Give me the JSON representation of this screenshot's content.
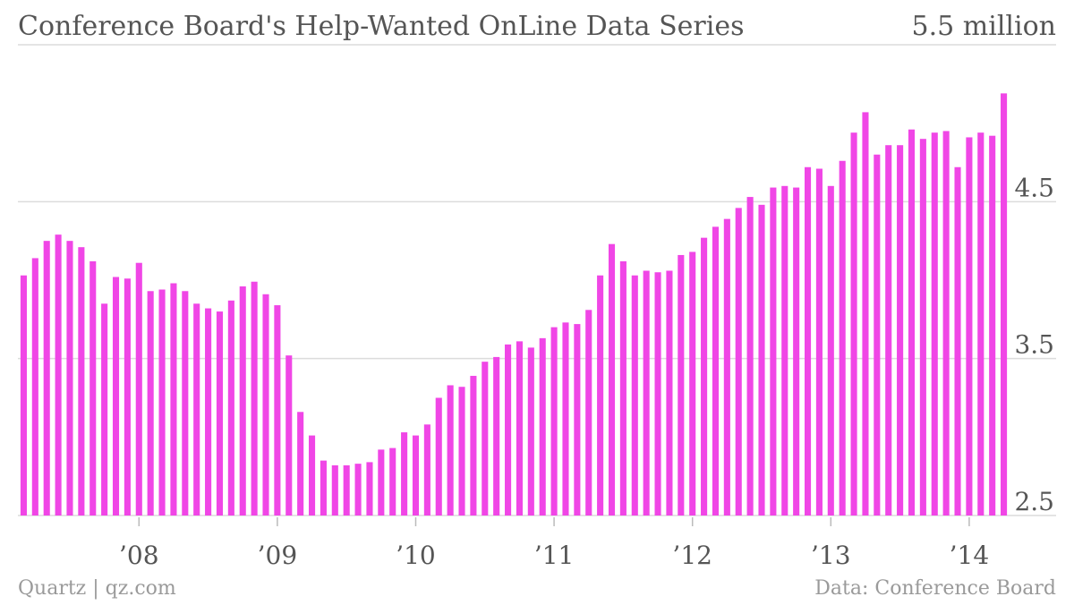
{
  "chart_data": {
    "type": "bar",
    "title": "Conference Board's Help-Wanted OnLine Data Series",
    "y_unit_label": "5.5 million",
    "ylim": [
      2.5,
      5.5
    ],
    "yticks": [
      {
        "value": 2.5,
        "label": "2.5"
      },
      {
        "value": 3.5,
        "label": "3.5"
      },
      {
        "value": 4.5,
        "label": "4.5"
      },
      {
        "value": 5.5,
        "label": "5.5 million"
      }
    ],
    "xticks": [
      {
        "index": 10,
        "label": "’08"
      },
      {
        "index": 22,
        "label": "’09"
      },
      {
        "index": 34,
        "label": "’10"
      },
      {
        "index": 46,
        "label": "’11"
      },
      {
        "index": 58,
        "label": "’12"
      },
      {
        "index": 70,
        "label": "’13"
      },
      {
        "index": 82,
        "label": "’14"
      }
    ],
    "grid": true,
    "bar_color": "#f046e6",
    "series": [
      {
        "values": [
          4.03,
          4.14,
          4.25,
          4.29,
          4.25,
          4.21,
          4.12,
          3.85,
          4.02,
          4.01,
          4.11,
          3.93,
          3.94,
          3.98,
          3.93,
          3.85,
          3.82,
          3.8,
          3.87,
          3.96,
          3.99,
          3.91,
          3.84,
          3.52,
          3.16,
          3.01,
          2.85,
          2.82,
          2.82,
          2.83,
          2.84,
          2.92,
          2.93,
          3.03,
          3.01,
          3.08,
          3.25,
          3.33,
          3.32,
          3.39,
          3.48,
          3.51,
          3.59,
          3.61,
          3.57,
          3.63,
          3.7,
          3.73,
          3.72,
          3.81,
          4.03,
          4.23,
          4.12,
          4.03,
          4.06,
          4.05,
          4.06,
          4.16,
          4.18,
          4.27,
          4.34,
          4.39,
          4.46,
          4.53,
          4.48,
          4.59,
          4.6,
          4.59,
          4.72,
          4.71,
          4.6,
          4.76,
          4.94,
          5.07,
          4.8,
          4.86,
          4.86,
          4.96,
          4.9,
          4.94,
          4.95,
          4.72,
          4.91,
          4.94,
          4.92,
          5.19
        ]
      }
    ],
    "source_left": "Quartz | qz.com",
    "source_right": "Data: Conference Board"
  }
}
